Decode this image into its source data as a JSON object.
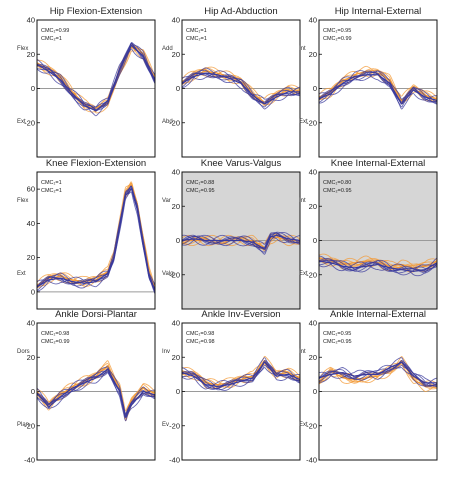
{
  "colors": {
    "orange": "#f39a36",
    "blue": "#3a3a9c",
    "zero_line": "#9a9a9a",
    "shaded_bg": "#d6d6d6",
    "axis": "#111111"
  },
  "chart_data": [
    {
      "type": "line",
      "title": "Hip Flexion-Extension",
      "ylim": [
        -40,
        40
      ],
      "yticks": [
        40,
        20,
        0,
        -20
      ],
      "xlim": [
        0,
        100
      ],
      "pos_label": "Flex",
      "neg_label": "Ext",
      "cmc": [
        "CMC₁=0.99",
        "CMC₂=1"
      ],
      "shaded": false,
      "x": [
        0,
        10,
        20,
        30,
        40,
        50,
        60,
        70,
        80,
        90,
        100
      ],
      "series": [
        {
          "color": "orange",
          "values": [
            15,
            11,
            6,
            -2,
            -9,
            -13,
            -8,
            10,
            24,
            20,
            6
          ]
        },
        {
          "color": "blue",
          "values": [
            14,
            10,
            5,
            -3,
            -10,
            -13,
            -7,
            11,
            25,
            19,
            5
          ]
        }
      ]
    },
    {
      "type": "line",
      "title": "Hip Ad-Abduction",
      "ylim": [
        -40,
        40
      ],
      "yticks": [
        40,
        20,
        0,
        -20
      ],
      "xlim": [
        0,
        100
      ],
      "pos_label": "Add",
      "neg_label": "Abd",
      "cmc": [
        "CMC₁=1",
        "CMC₂=1"
      ],
      "shaded": false,
      "x": [
        0,
        10,
        20,
        30,
        40,
        50,
        60,
        70,
        80,
        90,
        100
      ],
      "series": [
        {
          "color": "orange",
          "values": [
            4,
            8,
            10,
            9,
            7,
            4,
            -3,
            -8,
            -4,
            -1,
            -1
          ]
        },
        {
          "color": "blue",
          "values": [
            3,
            7,
            9,
            8,
            6,
            3,
            -4,
            -9,
            -5,
            -2,
            -2
          ]
        }
      ]
    },
    {
      "type": "line",
      "title": "Hip Internal-External",
      "ylim": [
        -40,
        40
      ],
      "yticks": [
        40,
        20,
        0,
        -20
      ],
      "xlim": [
        0,
        100
      ],
      "pos_label": "Int",
      "neg_label": "Ext",
      "cmc": [
        "CMC₁=0.95",
        "CMC₂=0.99"
      ],
      "shaded": false,
      "x": [
        0,
        10,
        20,
        30,
        40,
        50,
        60,
        70,
        80,
        90,
        100
      ],
      "series": [
        {
          "color": "orange",
          "values": [
            -5,
            -2,
            4,
            8,
            10,
            9,
            5,
            -7,
            0,
            -4,
            -6
          ]
        },
        {
          "color": "blue",
          "values": [
            -6,
            -3,
            3,
            7,
            8,
            8,
            3,
            -9,
            -1,
            -5,
            -7
          ]
        }
      ]
    },
    {
      "type": "line",
      "title": "Knee Flexion-Extension",
      "ylim": [
        -10,
        70
      ],
      "yticks": [
        60,
        40,
        20,
        0
      ],
      "xlim": [
        0,
        100
      ],
      "pos_label": "Flex",
      "neg_label": "Ext",
      "cmc": [
        "CMC₁=1",
        "CMC₂=1"
      ],
      "shaded": false,
      "x": [
        0,
        10,
        20,
        30,
        40,
        50,
        60,
        65,
        70,
        75,
        80,
        85,
        90,
        95,
        100
      ],
      "series": [
        {
          "color": "orange",
          "values": [
            4,
            8,
            9,
            7,
            6,
            7,
            12,
            22,
            40,
            58,
            62,
            50,
            30,
            12,
            2
          ]
        },
        {
          "color": "blue",
          "values": [
            3,
            7,
            8,
            6,
            5,
            6,
            11,
            20,
            38,
            56,
            60,
            48,
            28,
            10,
            1
          ]
        }
      ]
    },
    {
      "type": "line",
      "title": "Knee Varus-Valgus",
      "ylim": [
        -40,
        40
      ],
      "yticks": [
        40,
        20,
        0,
        -20
      ],
      "xlim": [
        0,
        100
      ],
      "pos_label": "Var",
      "neg_label": "Valg",
      "cmc": [
        "CMC₁=0.88",
        "CMC₂=0.95"
      ],
      "shaded": true,
      "x": [
        0,
        10,
        20,
        30,
        40,
        50,
        60,
        65,
        70,
        75,
        80,
        90,
        100
      ],
      "series": [
        {
          "color": "orange",
          "values": [
            0,
            0,
            0,
            0,
            0,
            0,
            0,
            -2,
            -4,
            1,
            2,
            0,
            0
          ]
        },
        {
          "color": "blue",
          "values": [
            0,
            1,
            0,
            0,
            0,
            0,
            -1,
            -3,
            -5,
            2,
            3,
            1,
            0
          ]
        }
      ]
    },
    {
      "type": "line",
      "title": "Knee Internal-External",
      "ylim": [
        -40,
        40
      ],
      "yticks": [
        40,
        20,
        0,
        -20
      ],
      "xlim": [
        0,
        100
      ],
      "pos_label": "Int",
      "neg_label": "Ext",
      "cmc": [
        "CMC₁=0.80",
        "CMC₂=0.95"
      ],
      "shaded": true,
      "x": [
        0,
        10,
        20,
        30,
        40,
        50,
        60,
        70,
        80,
        90,
        100
      ],
      "series": [
        {
          "color": "orange",
          "values": [
            -10,
            -12,
            -14,
            -13,
            -12,
            -13,
            -15,
            -14,
            -16,
            -15,
            -12
          ]
        },
        {
          "color": "blue",
          "values": [
            -12,
            -13,
            -15,
            -16,
            -15,
            -14,
            -16,
            -17,
            -18,
            -17,
            -13
          ]
        }
      ]
    },
    {
      "type": "line",
      "title": "Ankle Dorsi-Plantar",
      "ylim": [
        -40,
        40
      ],
      "yticks": [
        40,
        20,
        0,
        -20,
        -40
      ],
      "xlim": [
        0,
        100
      ],
      "pos_label": "Dors",
      "neg_label": "Plan",
      "cmc": [
        "CMC₁=0.98",
        "CMC₂=0.99"
      ],
      "shaded": false,
      "x": [
        0,
        10,
        20,
        30,
        40,
        50,
        60,
        70,
        75,
        80,
        90,
        100
      ],
      "series": [
        {
          "color": "orange",
          "values": [
            0,
            -8,
            -2,
            3,
            6,
            9,
            15,
            2,
            -14,
            -6,
            2,
            -1
          ]
        },
        {
          "color": "blue",
          "values": [
            -1,
            -9,
            -3,
            2,
            5,
            8,
            13,
            0,
            -15,
            -8,
            0,
            -2
          ]
        }
      ]
    },
    {
      "type": "line",
      "title": "Ankle Inv-Eversion",
      "ylim": [
        -40,
        40
      ],
      "yticks": [
        40,
        20,
        0,
        -20,
        -40
      ],
      "xlim": [
        0,
        100
      ],
      "pos_label": "Inv",
      "neg_label": "Ev",
      "cmc": [
        "CMC₁=0.98",
        "CMC₂=0.98"
      ],
      "shaded": false,
      "x": [
        0,
        10,
        20,
        30,
        40,
        50,
        60,
        70,
        80,
        90,
        100
      ],
      "series": [
        {
          "color": "orange",
          "values": [
            12,
            10,
            5,
            4,
            5,
            7,
            9,
            18,
            10,
            11,
            8
          ]
        },
        {
          "color": "blue",
          "values": [
            11,
            9,
            4,
            3,
            4,
            6,
            8,
            17,
            9,
            10,
            7
          ]
        }
      ]
    },
    {
      "type": "line",
      "title": "Ankle Internal-External",
      "ylim": [
        -40,
        40
      ],
      "yticks": [
        40,
        20,
        0,
        -20,
        -40
      ],
      "xlim": [
        0,
        100
      ],
      "pos_label": "Int",
      "neg_label": "Ext",
      "cmc": [
        "CMC₁=0.95",
        "CMC₂=0.95"
      ],
      "shaded": false,
      "x": [
        0,
        10,
        20,
        30,
        40,
        50,
        60,
        70,
        80,
        90,
        100
      ],
      "series": [
        {
          "color": "orange",
          "values": [
            6,
            12,
            8,
            7,
            8,
            9,
            12,
            18,
            7,
            3,
            4
          ]
        },
        {
          "color": "blue",
          "values": [
            8,
            10,
            11,
            9,
            10,
            10,
            14,
            17,
            9,
            5,
            5
          ]
        }
      ]
    }
  ]
}
